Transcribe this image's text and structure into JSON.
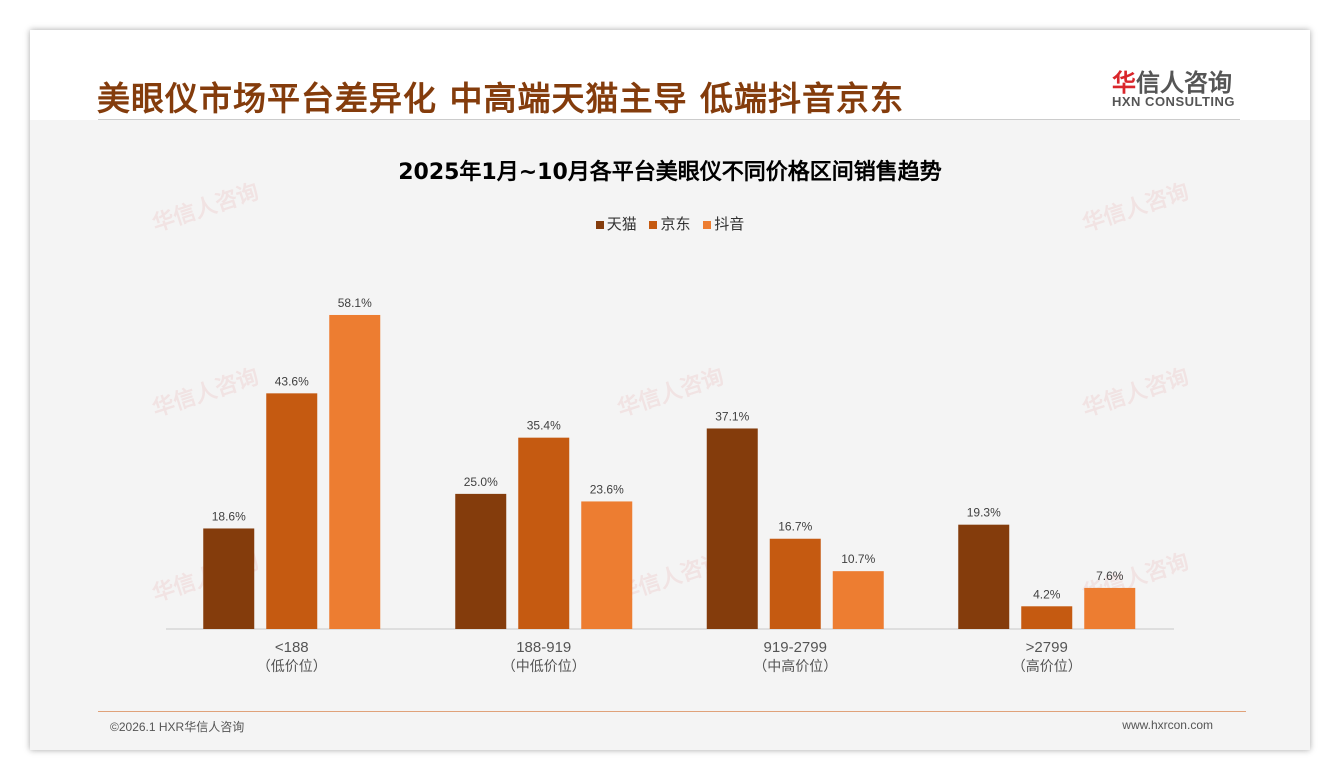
{
  "header": {
    "title": "美眼仪市场平台差异化 中高端天猫主导 低端抖音京东",
    "logo_cn_red": "华",
    "logo_cn": "信人咨询",
    "logo_en": "HXN CONSULTING"
  },
  "footer": {
    "left": "©2026.1 HXR华信人咨询",
    "right": "www.hxrcon.com"
  },
  "colors": {
    "tmall": "#843C0C",
    "jd": "#C55A11",
    "douyin": "#ED7D31"
  },
  "chart_data": {
    "type": "bar",
    "title": "2025年1月~10月各平台美眼仪不同价格区间销售趋势",
    "categories": [
      "<188",
      "188-919",
      "919-2799",
      ">2799"
    ],
    "category_sublabels": [
      "（低价位）",
      "（中低价位）",
      "（中高价位）",
      "（高价位）"
    ],
    "series": [
      {
        "name": "天猫",
        "values": [
          18.6,
          25.0,
          37.1,
          19.3
        ],
        "labels": [
          "18.6%",
          "25.0%",
          "37.1%",
          "19.3%"
        ]
      },
      {
        "name": "京东",
        "values": [
          43.6,
          35.4,
          16.7,
          4.2
        ],
        "labels": [
          "43.6%",
          "35.4%",
          "16.7%",
          "4.2%"
        ]
      },
      {
        "name": "抖音",
        "values": [
          58.1,
          23.6,
          10.7,
          7.6
        ],
        "labels": [
          "58.1%",
          "23.6%",
          "10.7%",
          "7.6%"
        ]
      }
    ],
    "ylim": [
      0,
      60
    ],
    "legend": "top",
    "grid": false,
    "unit": "%"
  }
}
